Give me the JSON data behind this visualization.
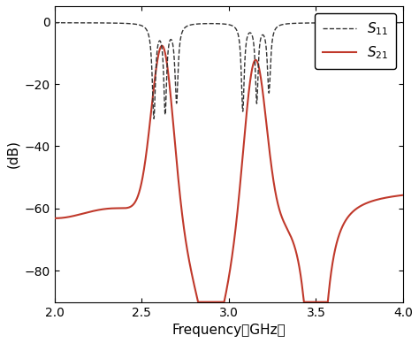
{
  "title": "",
  "xlabel": "Frequency（GHz）",
  "ylabel": "(dB)",
  "xlim": [
    2.0,
    4.0
  ],
  "ylim": [
    -90,
    5
  ],
  "yticks": [
    0,
    -20,
    -40,
    -60,
    -80
  ],
  "xticks": [
    2.0,
    2.5,
    3.0,
    3.5,
    4.0
  ],
  "legend_s11": "$S_{11}$",
  "legend_s21": "$S_{21}$",
  "s11_color": "#333333",
  "s21_color": "#c0392b",
  "background_color": "#ffffff",
  "figsize": [
    4.74,
    3.88
  ],
  "dpi": 100
}
